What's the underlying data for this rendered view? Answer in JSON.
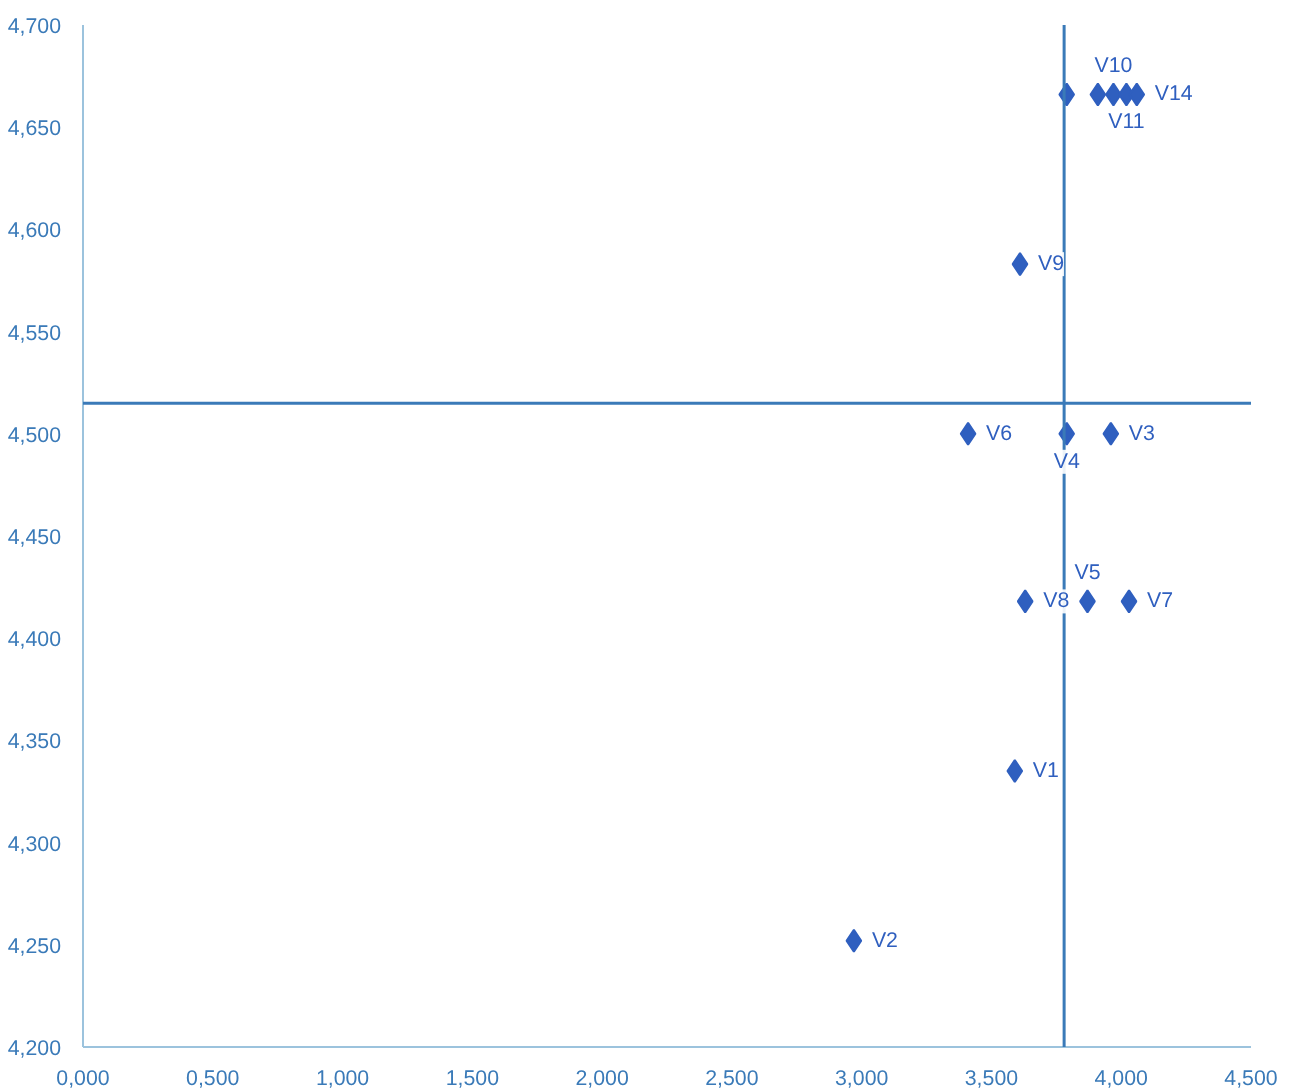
{
  "chart_data": {
    "type": "scatter",
    "marker": "diamond",
    "grid": false,
    "x": [
      2.97,
      3.59,
      3.63,
      3.87,
      4.03,
      3.41,
      3.79,
      3.96,
      3.61,
      3.79,
      3.91,
      3.97,
      4.02,
      4.06
    ],
    "series": [
      {
        "color": "#2f5fbf",
        "values": [
          4.252,
          4.335,
          4.418,
          4.418,
          4.418,
          4.5,
          4.5,
          4.5,
          4.583,
          4.666,
          4.666,
          4.666,
          4.666,
          4.666
        ],
        "value_labels": [
          "V2",
          "V1",
          "V8",
          "V5",
          "V7",
          "V6",
          "V4",
          "V3",
          "V9",
          null,
          null,
          "V10",
          "V11",
          "V14"
        ]
      }
    ],
    "xlim": [
      0,
      4.5
    ],
    "ylim": [
      4.2,
      4.7
    ],
    "xticks": [
      {
        "value": 0,
        "label": "0,000"
      },
      {
        "value": 0.5,
        "label": "0,500"
      },
      {
        "value": 1,
        "label": "1,000"
      },
      {
        "value": 1.5,
        "label": "1,500"
      },
      {
        "value": 2,
        "label": "2,000"
      },
      {
        "value": 2.5,
        "label": "2,500"
      },
      {
        "value": 3,
        "label": "3,000"
      },
      {
        "value": 3.5,
        "label": "3,500"
      },
      {
        "value": 4,
        "label": "4,000"
      },
      {
        "value": 4.5,
        "label": "4,500"
      }
    ],
    "yticks": [
      {
        "value": 4.2,
        "label": "4,200"
      },
      {
        "value": 4.25,
        "label": "4,250"
      },
      {
        "value": 4.3,
        "label": "4,300"
      },
      {
        "value": 4.35,
        "label": "4,350"
      },
      {
        "value": 4.4,
        "label": "4,400"
      },
      {
        "value": 4.45,
        "label": "4,450"
      },
      {
        "value": 4.5,
        "label": "4,500"
      },
      {
        "value": 4.55,
        "label": "4,550"
      },
      {
        "value": 4.6,
        "label": "4,600"
      },
      {
        "value": 4.65,
        "label": "4,650"
      },
      {
        "value": 4.7,
        "label": "4,700"
      }
    ],
    "ref_lines": [
      {
        "axis": "x",
        "value": 3.78,
        "color": "#3a7ab8"
      },
      {
        "axis": "y",
        "value": 4.515,
        "color": "#3a7ab8"
      }
    ]
  }
}
